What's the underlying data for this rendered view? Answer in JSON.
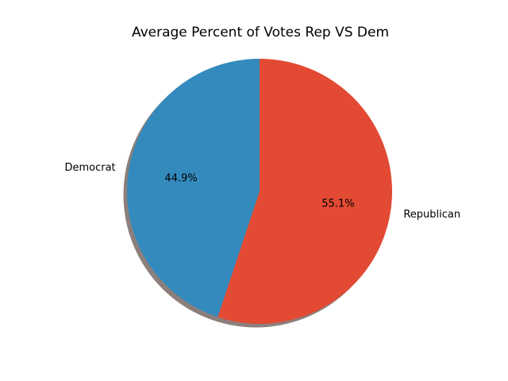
{
  "chart_data": {
    "type": "pie",
    "title": "Average Percent of Votes Rep VS Dem",
    "slices": [
      {
        "label": "Democrat",
        "value": 44.9,
        "pct_label": "44.9%",
        "color": "#348abd"
      },
      {
        "label": "Republican",
        "value": 55.1,
        "pct_label": "55.1%",
        "color": "#e24a33"
      }
    ],
    "start_angle": 90,
    "direction": "counterclockwise",
    "shadow": true,
    "shadow_color": "#8c7f7c"
  }
}
